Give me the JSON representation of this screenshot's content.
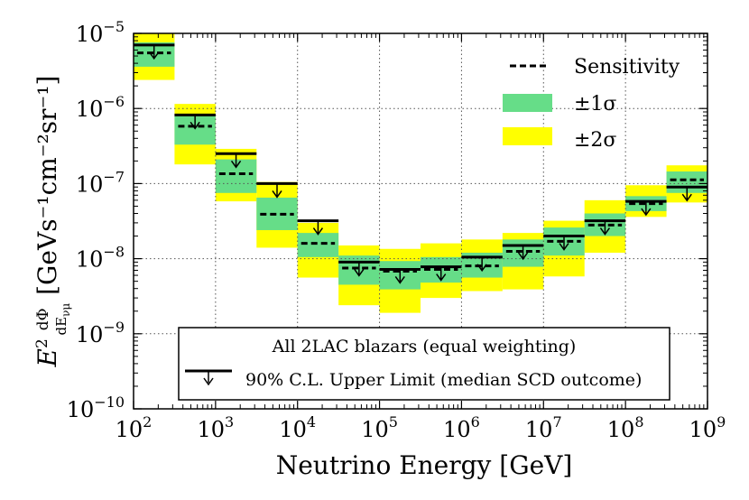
{
  "chart_data": {
    "type": "bar",
    "title": "",
    "xlabel": "Neutrino Energy [GeV]",
    "ylabel_parts": {
      "lead": "E",
      "sup": "2",
      "numerator": "dΦ",
      "denominator": "dE",
      "denominator_sub": "νμ",
      "units": "[GeVs⁻¹cm⁻²sr⁻¹]"
    },
    "x_scale": "log",
    "y_scale": "log",
    "xlim": [
      100,
      1000000000
    ],
    "ylim": [
      1e-10,
      1e-05
    ],
    "x_ticks": [
      {
        "base": "10",
        "exp": "2",
        "value": 100
      },
      {
        "base": "10",
        "exp": "3",
        "value": 1000
      },
      {
        "base": "10",
        "exp": "4",
        "value": 10000
      },
      {
        "base": "10",
        "exp": "5",
        "value": 100000
      },
      {
        "base": "10",
        "exp": "6",
        "value": 1000000
      },
      {
        "base": "10",
        "exp": "7",
        "value": 10000000
      },
      {
        "base": "10",
        "exp": "8",
        "value": 100000000
      },
      {
        "base": "10",
        "exp": "9",
        "value": 1000000000
      }
    ],
    "y_ticks": [
      {
        "base": "10",
        "exp": "−10",
        "value": 1e-10
      },
      {
        "base": "10",
        "exp": "−9",
        "value": 1e-09
      },
      {
        "base": "10",
        "exp": "−8",
        "value": 1e-08
      },
      {
        "base": "10",
        "exp": "−7",
        "value": 1e-07
      },
      {
        "base": "10",
        "exp": "−6",
        "value": 1e-06
      },
      {
        "base": "10",
        "exp": "−5",
        "value": 1e-05
      }
    ],
    "grid": true,
    "bin_edges": [
      100,
      316.2,
      1000,
      3162,
      10000,
      31623,
      100000,
      316228,
      1000000,
      3162278,
      10000000,
      31622777,
      100000000,
      316227766,
      1000000000
    ],
    "series": [
      {
        "name": "90% C.L. Upper Limit (median SCD outcome)",
        "values": [
          7e-06,
          8.2e-07,
          2.5e-07,
          1e-07,
          3.2e-08,
          9e-09,
          7.2e-09,
          7.8e-09,
          1.05e-08,
          1.5e-08,
          2e-08,
          3.2e-08,
          5.8e-08,
          9e-08
        ]
      },
      {
        "name": "Sensitivity",
        "values": [
          5.5e-06,
          5.8e-07,
          1.35e-07,
          3.9e-08,
          1.6e-08,
          7.5e-09,
          6.8e-09,
          7.2e-09,
          8e-09,
          1.25e-08,
          1.7e-08,
          2.8e-08,
          5.4e-08,
          1.12e-07
        ]
      },
      {
        "name": "±1σ lower",
        "values": [
          3.6e-06,
          3.3e-07,
          7.5e-08,
          2.4e-08,
          1.05e-08,
          4.5e-09,
          3.9e-09,
          4.8e-09,
          5.6e-09,
          7.8e-09,
          1.1e-08,
          2e-08,
          4.3e-08,
          7.5e-08
        ]
      },
      {
        "name": "±1σ upper",
        "values": [
          7.6e-06,
          8e-07,
          2.1e-07,
          6.5e-08,
          2.2e-08,
          1.1e-08,
          9.3e-09,
          1.05e-08,
          1.2e-08,
          1.8e-08,
          2.6e-08,
          4e-08,
          6.8e-08,
          1.45e-07
        ]
      },
      {
        "name": "±2σ lower",
        "values": [
          2.4e-06,
          1.8e-07,
          5.8e-08,
          1.4e-08,
          5.6e-09,
          2.4e-09,
          1.9e-09,
          3e-09,
          3.7e-09,
          3.9e-09,
          5.8e-09,
          1.2e-08,
          3.6e-08,
          5.6e-08
        ]
      },
      {
        "name": "±2σ upper",
        "values": [
          1e-05,
          1.15e-06,
          2.9e-07,
          1.05e-07,
          3e-08,
          1.5e-08,
          1.35e-08,
          1.6e-08,
          1.8e-08,
          2.2e-08,
          3.2e-08,
          6e-08,
          9.5e-08,
          1.75e-07
        ]
      }
    ],
    "legend": {
      "placement": "top-right",
      "entries": [
        "Sensitivity",
        "±1σ",
        "±2σ"
      ]
    },
    "annotation_box": {
      "placement": "bottom-center",
      "title": "All 2LAC blazars (equal weighting)",
      "entry": "90% C.L. Upper Limit (median SCD outcome)"
    },
    "colors": {
      "one_sigma": "#66dd88",
      "two_sigma": "#ffff00",
      "limit": "#000000",
      "grid": "#555555"
    }
  }
}
